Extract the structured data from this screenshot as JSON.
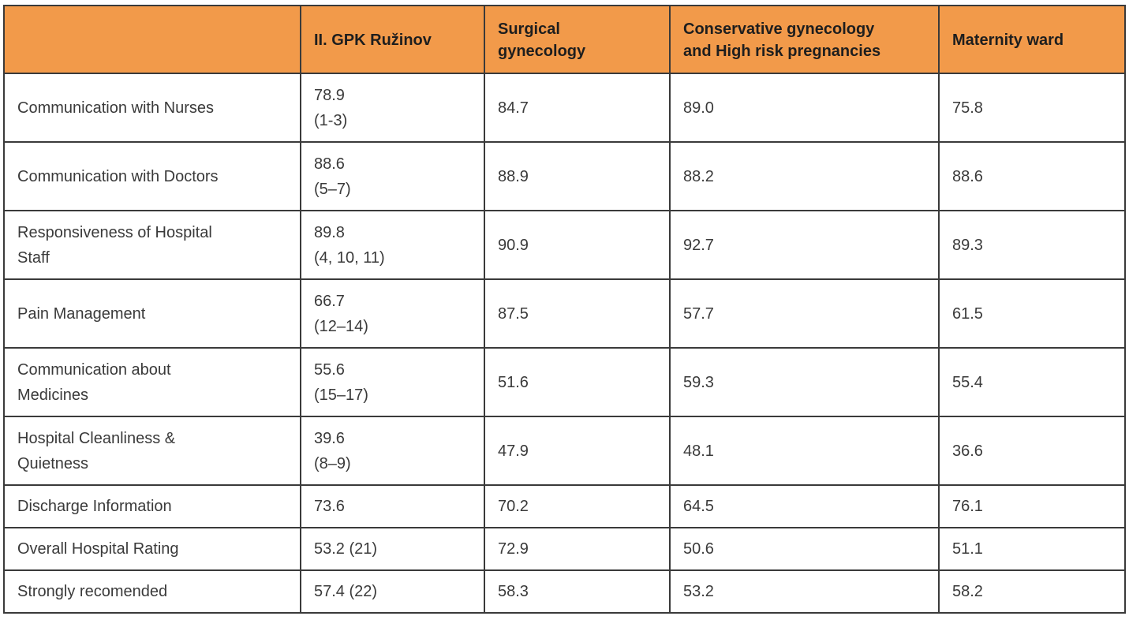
{
  "table": {
    "headers": [
      "",
      "II. GPK Ružinov",
      "Surgical gynecology",
      "Conservative gynecology and High risk pregnancies",
      "Maternity ward"
    ],
    "header_lines": [
      [
        ""
      ],
      [
        "II. GPK Ružinov"
      ],
      [
        "Surgical",
        "gynecology"
      ],
      [
        "Conservative gynecology",
        "and High risk pregnancies"
      ],
      [
        "Maternity ward"
      ]
    ],
    "rows": [
      {
        "label": [
          "Communication with Nurses"
        ],
        "gpk": [
          "78.9",
          "(1-3)"
        ],
        "surgical": "84.7",
        "conservative": "89.0",
        "maternity": "75.8"
      },
      {
        "label": [
          "Communication with Doctors"
        ],
        "gpk": [
          "88.6",
          "(5–7)"
        ],
        "surgical": "88.9",
        "conservative": "88.2",
        "maternity": "88.6"
      },
      {
        "label": [
          "Responsiveness of Hospital",
          "Staff"
        ],
        "gpk": [
          "89.8",
          "(4, 10, 11)"
        ],
        "surgical": "90.9",
        "conservative": "92.7",
        "maternity": "89.3"
      },
      {
        "label": [
          "Pain Management"
        ],
        "gpk": [
          "66.7",
          "(12–14)"
        ],
        "surgical": "87.5",
        "conservative": "57.7",
        "maternity": "61.5"
      },
      {
        "label": [
          "Communication about",
          "Medicines"
        ],
        "gpk": [
          "55.6",
          "(15–17)"
        ],
        "surgical": "51.6",
        "conservative": "59.3",
        "maternity": "55.4"
      },
      {
        "label": [
          "Hospital Cleanliness &",
          "Quietness"
        ],
        "gpk": [
          "39.6",
          "(8–9)"
        ],
        "surgical": "47.9",
        "conservative": "48.1",
        "maternity": "36.6"
      },
      {
        "label": [
          "Discharge Information"
        ],
        "gpk": [
          "73.6"
        ],
        "surgical": "70.2",
        "conservative": "64.5",
        "maternity": "76.1"
      },
      {
        "label": [
          "Overall Hospital Rating"
        ],
        "gpk": [
          "53.2 (21)"
        ],
        "surgical": "72.9",
        "conservative": "50.6",
        "maternity": "51.1"
      },
      {
        "label": [
          "Strongly recomended"
        ],
        "gpk": [
          "57.4 (22)"
        ],
        "surgical": "58.3",
        "conservative": "53.2",
        "maternity": "58.2"
      }
    ]
  },
  "colors": {
    "header_bg": "#f29a4a",
    "border": "#3a3a3a",
    "text": "#3a3a3a"
  }
}
